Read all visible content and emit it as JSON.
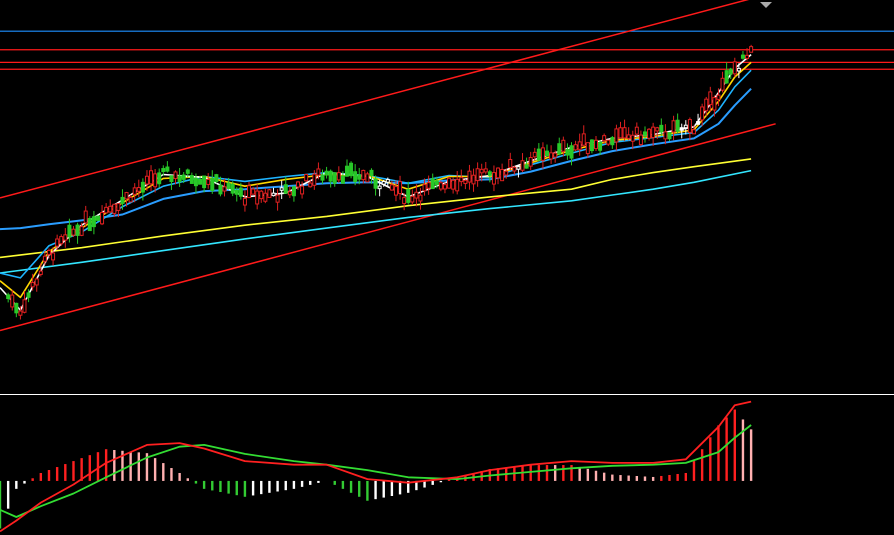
{
  "colors": {
    "background": "#000000",
    "bull": "#e02020",
    "bear": "#28c828",
    "doji": "#ffffff",
    "channel": "#ff1a1a",
    "level_blue": "#1e90ff",
    "level_red": "#ff1a1a",
    "ma_white": "#ffffff",
    "ma_yellow": "#ffd700",
    "ma_sky": "#1eb4ff",
    "ma_blue": "#2a9dff",
    "ma_slow_yellow": "#ffff33",
    "ma_slow_cyan": "#33e6ff",
    "dif": "#ff2020",
    "dea": "#33dd33",
    "hist_red": "#ff2020",
    "hist_pink": "#ffb0b0",
    "hist_green": "#33cc33",
    "hist_white": "#ffffff",
    "separator": "#ffffff"
  },
  "marker_icon": "triangle-down-icon",
  "chart_data": [
    {
      "type": "candlestick",
      "panel": "price",
      "grid": false,
      "ylim": [
        0,
        40
      ],
      "levels": [
        36.8,
        34.9,
        33.6,
        32.9
      ],
      "channel_lines": [
        {
          "from": [
            0,
            19.7
          ],
          "to": [
            190,
            40.8
          ]
        },
        {
          "from": [
            0,
            6.1
          ],
          "to": [
            190,
            27.3
          ]
        }
      ],
      "series": [
        {
          "kind": "ma",
          "color_key": "ma_white",
          "x": [
            0,
            5,
            12,
            20,
            30,
            40,
            50,
            60,
            70,
            80,
            90,
            100,
            110,
            120,
            130,
            140,
            150,
            160,
            170,
            176,
            180,
            184
          ],
          "y": [
            10.5,
            8.2,
            13.8,
            16.9,
            19.5,
            22.1,
            21.8,
            19.8,
            20.2,
            22.3,
            21.9,
            19.8,
            21.4,
            22.0,
            23.5,
            24.9,
            25.8,
            26.2,
            27.0,
            30.5,
            33.0,
            34.4
          ]
        },
        {
          "kind": "ma",
          "color_key": "ma_yellow",
          "x": [
            0,
            5,
            12,
            20,
            30,
            40,
            50,
            60,
            70,
            80,
            90,
            100,
            110,
            120,
            130,
            140,
            150,
            160,
            170,
            176,
            180,
            184
          ],
          "y": [
            11.2,
            9.5,
            14.2,
            16.6,
            19.2,
            21.7,
            21.9,
            20.9,
            21.6,
            22.1,
            22.0,
            20.6,
            21.9,
            21.9,
            23.3,
            24.6,
            25.6,
            26.0,
            26.7,
            29.6,
            32.1,
            33.6
          ]
        },
        {
          "kind": "ma",
          "color_key": "ma_sky",
          "x": [
            0,
            5,
            12,
            20,
            30,
            40,
            50,
            60,
            70,
            80,
            90,
            100,
            110,
            120,
            130,
            140,
            150,
            160,
            170,
            176,
            180,
            184
          ],
          "y": [
            12.0,
            11.5,
            14.8,
            16.2,
            18.8,
            20.9,
            21.9,
            21.4,
            21.9,
            22.3,
            22.0,
            21.2,
            22.0,
            21.8,
            23.1,
            24.3,
            25.4,
            25.9,
            26.4,
            28.7,
            31.1,
            32.8
          ]
        },
        {
          "kind": "ma",
          "color_key": "ma_blue",
          "x": [
            0,
            5,
            12,
            20,
            30,
            40,
            50,
            60,
            70,
            80,
            90,
            100,
            110,
            120,
            130,
            140,
            150,
            160,
            170,
            176,
            180,
            184
          ],
          "y": [
            16.5,
            16.6,
            17.0,
            17.4,
            18.0,
            19.6,
            20.4,
            20.6,
            20.9,
            21.2,
            21.3,
            21.2,
            21.5,
            21.6,
            22.4,
            23.5,
            24.5,
            25.2,
            25.8,
            27.3,
            29.2,
            30.9
          ]
        },
        {
          "kind": "ma",
          "color_key": "ma_slow_yellow",
          "x": [
            0,
            20,
            40,
            60,
            80,
            100,
            120,
            140,
            150,
            160,
            170,
            184
          ],
          "y": [
            13.6,
            14.6,
            15.8,
            16.9,
            17.8,
            18.9,
            19.8,
            20.6,
            21.6,
            22.3,
            22.9,
            23.7
          ]
        },
        {
          "kind": "ma",
          "color_key": "ma_slow_cyan",
          "x": [
            0,
            20,
            40,
            60,
            80,
            100,
            120,
            140,
            150,
            160,
            170,
            184
          ],
          "y": [
            12.0,
            13.1,
            14.3,
            15.5,
            16.6,
            17.7,
            18.6,
            19.4,
            20.0,
            20.6,
            21.3,
            22.5
          ]
        }
      ]
    },
    {
      "type": "macd",
      "panel": "indicator",
      "grid": false,
      "ylim": [
        -1.5,
        2.3
      ],
      "series": [
        {
          "kind": "line",
          "name": "",
          "color_key": "dif",
          "x": [
            0,
            4,
            10,
            18,
            26,
            36,
            44,
            50,
            60,
            72,
            80,
            90,
            100,
            112,
            120,
            130,
            140,
            150,
            160,
            168,
            176,
            180,
            184
          ],
          "y": [
            -1.4,
            -1.1,
            -0.6,
            -0.1,
            0.5,
            1.0,
            1.05,
            0.9,
            0.55,
            0.45,
            0.45,
            0.05,
            -0.05,
            0.1,
            0.3,
            0.45,
            0.55,
            0.5,
            0.5,
            0.6,
            1.5,
            2.1,
            2.2
          ]
        },
        {
          "kind": "line",
          "name": "",
          "color_key": "dea",
          "x": [
            0,
            4,
            10,
            18,
            26,
            36,
            44,
            50,
            60,
            72,
            80,
            90,
            100,
            112,
            120,
            130,
            140,
            150,
            160,
            168,
            176,
            180,
            184
          ],
          "y": [
            -0.8,
            -1.0,
            -0.7,
            -0.35,
            0.1,
            0.65,
            0.95,
            1.0,
            0.75,
            0.55,
            0.45,
            0.3,
            0.1,
            0.05,
            0.15,
            0.25,
            0.35,
            0.42,
            0.45,
            0.5,
            0.8,
            1.2,
            1.55
          ]
        }
      ]
    }
  ]
}
